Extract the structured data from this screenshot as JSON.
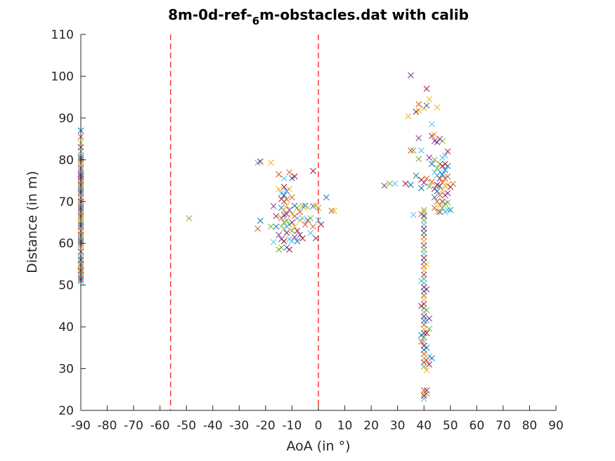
{
  "chart_data": {
    "type": "scatter",
    "title_parts": {
      "pre": "8m-0d-ref-",
      "sub": "6",
      "post": "m-obstacles.dat with calib"
    },
    "xlabel": "AoA (in °)",
    "ylabel": "Distance (in m)",
    "xlim": [
      -90,
      90
    ],
    "ylim": [
      20,
      110
    ],
    "xticks": [
      -90,
      -80,
      -70,
      -60,
      -50,
      -40,
      -30,
      -20,
      -10,
      0,
      10,
      20,
      30,
      40,
      50,
      60,
      70,
      80,
      90
    ],
    "yticks": [
      20,
      30,
      40,
      50,
      60,
      70,
      80,
      90,
      100,
      110
    ],
    "xtick_labels": [
      "-90",
      "-80",
      "-70",
      "-60",
      "-50",
      "-40",
      "-30",
      "-20",
      "-10",
      "0",
      "10",
      "20",
      "30",
      "40",
      "50",
      "60",
      "70",
      "80",
      "90"
    ],
    "ytick_labels": [
      "20",
      "30",
      "40",
      "50",
      "60",
      "70",
      "80",
      "90",
      "100",
      "110"
    ],
    "grid": false,
    "marker": "x",
    "colors": [
      "#0072BD",
      "#D95319",
      "#EDB120",
      "#7E2F8E",
      "#77AC30",
      "#4DBEEE",
      "#A2142F"
    ],
    "reference_lines": [
      {
        "x": -56,
        "color": "#FF4040",
        "style": "dashed"
      },
      {
        "x": 0,
        "color": "#FF4040",
        "style": "dashed"
      }
    ],
    "points": [
      [
        -90,
        87
      ],
      [
        -90,
        85.5
      ],
      [
        -90,
        84
      ],
      [
        -90,
        83
      ],
      [
        -90,
        82
      ],
      [
        -90,
        81
      ],
      [
        -90,
        80.5
      ],
      [
        -90,
        80
      ],
      [
        -90,
        79.5
      ],
      [
        -90,
        79
      ],
      [
        -90,
        78
      ],
      [
        -90,
        77.5
      ],
      [
        -90,
        77
      ],
      [
        -90,
        76
      ],
      [
        -90,
        75.5
      ],
      [
        -90,
        75
      ],
      [
        -90,
        74.5
      ],
      [
        -90,
        74
      ],
      [
        -90,
        73.5
      ],
      [
        -90,
        73
      ],
      [
        -90,
        72.5
      ],
      [
        -90,
        72
      ],
      [
        -90,
        71
      ],
      [
        -90,
        70.5
      ],
      [
        -90,
        70
      ],
      [
        -90,
        69.5
      ],
      [
        -90,
        69
      ],
      [
        -90,
        68.5
      ],
      [
        -90,
        68
      ],
      [
        -90,
        67.5
      ],
      [
        -90,
        67
      ],
      [
        -90,
        66.5
      ],
      [
        -90,
        66
      ],
      [
        -90,
        65
      ],
      [
        -90,
        64.5
      ],
      [
        -90,
        64
      ],
      [
        -90,
        63
      ],
      [
        -90,
        62.5
      ],
      [
        -90,
        62
      ],
      [
        -90,
        61.5
      ],
      [
        -90,
        61
      ],
      [
        -90,
        60.5
      ],
      [
        -90,
        60
      ],
      [
        -90,
        59.5
      ],
      [
        -90,
        59
      ],
      [
        -90,
        58
      ],
      [
        -90,
        57
      ],
      [
        -90,
        56.5
      ],
      [
        -90,
        56
      ],
      [
        -90,
        55
      ],
      [
        -90,
        54.5
      ],
      [
        -90,
        54
      ],
      [
        -90,
        53.5
      ],
      [
        -90,
        53
      ],
      [
        -90,
        52
      ],
      [
        -90,
        51.5
      ],
      [
        -90,
        51
      ],
      [
        -90,
        52.5
      ],
      [
        -90,
        65.5
      ],
      [
        -90,
        76.5
      ],
      [
        -49,
        66
      ],
      [
        -23,
        79.3
      ],
      [
        -22,
        79.6
      ],
      [
        -22,
        65.4
      ],
      [
        -23,
        63.5
      ],
      [
        -18,
        79.3
      ],
      [
        -17,
        68.9
      ],
      [
        -18,
        64
      ],
      [
        -17,
        60.3
      ],
      [
        -16,
        66.5
      ],
      [
        -16,
        64
      ],
      [
        -15,
        76.5
      ],
      [
        -15,
        73
      ],
      [
        -15,
        62
      ],
      [
        -15,
        58.5
      ],
      [
        -14,
        72
      ],
      [
        -14,
        70.6
      ],
      [
        -14,
        68.5
      ],
      [
        -14,
        66
      ],
      [
        -14,
        64
      ],
      [
        -14,
        61
      ],
      [
        -14,
        59
      ],
      [
        -13,
        75.5
      ],
      [
        -13,
        73.5
      ],
      [
        -13,
        71.5
      ],
      [
        -13,
        70
      ],
      [
        -13,
        68
      ],
      [
        -13,
        66.8
      ],
      [
        -13,
        65
      ],
      [
        -13,
        63.5
      ],
      [
        -13,
        60.5
      ],
      [
        -12,
        72.5
      ],
      [
        -12,
        70.5
      ],
      [
        -12,
        69
      ],
      [
        -12,
        67
      ],
      [
        -12,
        65.5
      ],
      [
        -12,
        64
      ],
      [
        -12,
        62.5
      ],
      [
        -12,
        59
      ],
      [
        -11,
        77
      ],
      [
        -11,
        73
      ],
      [
        -11,
        68
      ],
      [
        -11,
        64.5
      ],
      [
        -11,
        61
      ],
      [
        -11,
        58.5
      ],
      [
        -10,
        75.6
      ],
      [
        -10,
        71
      ],
      [
        -10,
        67
      ],
      [
        -10,
        65
      ],
      [
        -10,
        63
      ],
      [
        -10,
        60.5
      ],
      [
        -9,
        76
      ],
      [
        -9,
        69
      ],
      [
        -9,
        66.5
      ],
      [
        -9,
        64
      ],
      [
        -9,
        61.5
      ],
      [
        -8,
        68.5
      ],
      [
        -8,
        66
      ],
      [
        -8,
        63
      ],
      [
        -8,
        60.5
      ],
      [
        -7,
        67.5
      ],
      [
        -7,
        65.5
      ],
      [
        -7,
        62
      ],
      [
        -6,
        68.9
      ],
      [
        -6,
        66
      ],
      [
        -6,
        61.2
      ],
      [
        -5,
        69
      ],
      [
        -5,
        64.5
      ],
      [
        -4,
        68.5
      ],
      [
        -4,
        65.5
      ],
      [
        -3,
        66
      ],
      [
        -3,
        62.5
      ],
      [
        -2,
        77.3
      ],
      [
        -2,
        68.9
      ],
      [
        -2,
        64
      ],
      [
        -1,
        69
      ],
      [
        -1,
        61.2
      ],
      [
        0,
        68.5
      ],
      [
        0,
        65.5
      ],
      [
        1,
        64.5
      ],
      [
        3,
        71
      ],
      [
        5,
        67.8
      ],
      [
        6,
        67.8
      ],
      [
        25,
        73.8
      ],
      [
        27,
        74.3
      ],
      [
        29,
        74.3
      ],
      [
        33,
        74.3
      ],
      [
        35,
        74
      ],
      [
        35,
        82.2
      ],
      [
        34,
        90.4
      ],
      [
        35,
        100.2
      ],
      [
        36,
        82.2
      ],
      [
        36,
        66.8
      ],
      [
        37,
        91.5
      ],
      [
        37,
        76.2
      ],
      [
        38,
        93.3
      ],
      [
        38,
        91.8
      ],
      [
        38,
        85.2
      ],
      [
        38,
        80.2
      ],
      [
        39,
        82.2
      ],
      [
        39,
        75.2
      ],
      [
        39,
        73.2
      ],
      [
        39,
        67
      ],
      [
        40,
        92.3
      ],
      [
        40,
        74.5
      ],
      [
        40,
        68
      ],
      [
        40,
        66.8
      ],
      [
        41,
        97
      ],
      [
        41,
        93
      ],
      [
        41,
        75.5
      ],
      [
        42,
        94.5
      ],
      [
        42,
        80.5
      ],
      [
        42,
        73.6
      ],
      [
        43,
        88.5
      ],
      [
        43,
        85.7
      ],
      [
        43,
        79
      ],
      [
        43,
        74.7
      ],
      [
        44,
        86
      ],
      [
        44,
        84.5
      ],
      [
        44,
        80
      ],
      [
        44,
        77
      ],
      [
        44,
        73
      ],
      [
        44,
        71
      ],
      [
        44,
        68.5
      ],
      [
        45,
        92.5
      ],
      [
        45,
        84.2
      ],
      [
        45,
        78
      ],
      [
        45,
        76.2
      ],
      [
        45,
        74
      ],
      [
        45,
        72.5
      ],
      [
        45,
        70
      ],
      [
        45,
        67.5
      ],
      [
        46,
        85
      ],
      [
        46,
        79
      ],
      [
        46,
        77
      ],
      [
        46,
        75.5
      ],
      [
        46,
        73.7
      ],
      [
        46,
        71.5
      ],
      [
        46,
        69
      ],
      [
        46,
        67.5
      ],
      [
        47,
        84.5
      ],
      [
        47,
        80.5
      ],
      [
        47,
        78.5
      ],
      [
        47,
        76.5
      ],
      [
        47,
        74.5
      ],
      [
        47,
        72.7
      ],
      [
        47,
        70
      ],
      [
        47,
        68.5
      ],
      [
        48,
        81
      ],
      [
        48,
        79
      ],
      [
        48,
        77.5
      ],
      [
        48,
        75.5
      ],
      [
        48,
        73.8
      ],
      [
        48,
        71.5
      ],
      [
        48,
        69.5
      ],
      [
        48,
        67.5
      ],
      [
        49,
        82
      ],
      [
        49,
        78.5
      ],
      [
        49,
        76
      ],
      [
        49,
        74
      ],
      [
        49,
        72
      ],
      [
        49,
        69.8
      ],
      [
        49,
        68
      ],
      [
        50,
        73.5
      ],
      [
        50,
        68
      ],
      [
        51,
        74.2
      ],
      [
        40,
        67.5
      ],
      [
        40,
        66.5
      ],
      [
        40,
        65.5
      ],
      [
        40,
        64.5
      ],
      [
        40,
        63.5
      ],
      [
        40,
        62.5
      ],
      [
        40,
        61.5
      ],
      [
        40,
        60.5
      ],
      [
        40,
        59.5
      ],
      [
        40,
        58.5
      ],
      [
        40,
        57.5
      ],
      [
        40,
        56.5
      ],
      [
        40,
        55.5
      ],
      [
        40,
        54.5
      ],
      [
        40,
        53.5
      ],
      [
        40,
        52.5
      ],
      [
        40,
        51.5
      ],
      [
        40,
        50.5
      ],
      [
        40,
        49.5
      ],
      [
        40,
        48.5
      ],
      [
        40,
        47.5
      ],
      [
        40,
        46.5
      ],
      [
        40,
        45.5
      ],
      [
        40,
        44.5
      ],
      [
        40,
        43.5
      ],
      [
        40,
        42.5
      ],
      [
        40,
        41.5
      ],
      [
        40,
        40.5
      ],
      [
        40,
        39.5
      ],
      [
        40,
        38.5
      ],
      [
        40,
        37.5
      ],
      [
        40,
        36.5
      ],
      [
        40,
        35.5
      ],
      [
        40,
        34.5
      ],
      [
        40,
        33.5
      ],
      [
        40,
        32.5
      ],
      [
        40,
        31.5
      ],
      [
        40,
        30.5
      ],
      [
        39,
        51
      ],
      [
        39,
        45
      ],
      [
        39,
        38
      ],
      [
        39,
        36.5
      ],
      [
        41,
        55
      ],
      [
        41,
        49
      ],
      [
        41,
        44
      ],
      [
        41,
        41.5
      ],
      [
        41,
        38.5
      ],
      [
        41,
        35
      ],
      [
        41,
        32
      ],
      [
        41,
        29.6
      ],
      [
        42,
        42
      ],
      [
        42,
        39.5
      ],
      [
        42,
        33
      ],
      [
        42,
        31
      ],
      [
        43,
        32.5
      ],
      [
        40,
        24.8
      ],
      [
        40,
        24
      ],
      [
        41,
        24.8
      ],
      [
        41,
        24
      ],
      [
        40,
        22.8
      ],
      [
        40,
        23.5
      ]
    ]
  }
}
